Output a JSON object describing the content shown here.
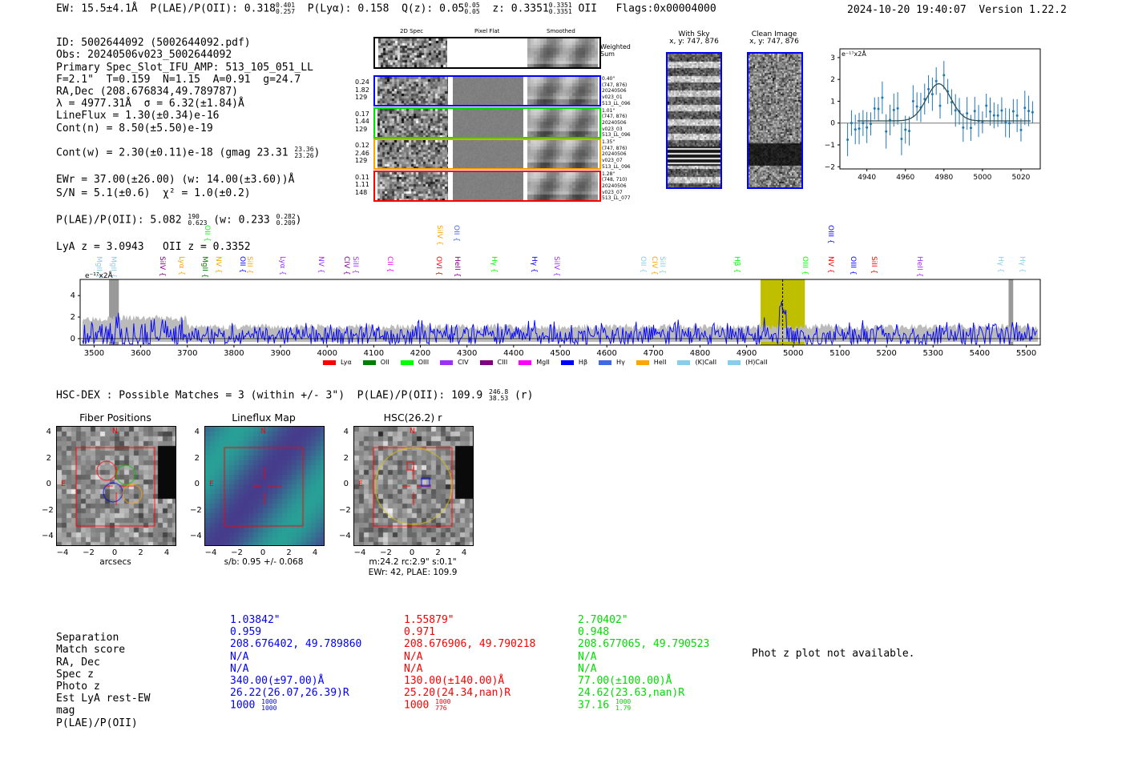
{
  "header": {
    "ew": "EW: 15.5±4.1Å",
    "plae_label": "P(LAE)/P(OII): 0.318",
    "plae_hi": "0.401",
    "plae_lo": "0.257",
    "plya": "P(Lyα): 0.158",
    "qz": "Q(z): 0.05",
    "qz_hi": "0.05",
    "qz_lo": "0.05",
    "z": "z: 0.3351",
    "z_hi": "0.3351",
    "z_lo": "0.3351",
    "z_line": "OII",
    "flags": "Flags:0x00004000",
    "timestamp": "2024-10-20 19:40:07",
    "version": "Version 1.22.2"
  },
  "info": {
    "lines": [
      "ID: 5002644092 (5002644092.pdf)",
      "Obs: 20240506v023_5002644092",
      "Primary Spec_Slot_IFU_AMP: 513_105_051_LL",
      "F=2.1\"  T=0.159  N=1.15  A=0.91  g=24.7",
      "RA,Dec (208.676834,49.789787)",
      "λ = 4977.31Å  σ = 6.32(±1.84)Å",
      "LineFlux = 1.30(±0.34)e-16",
      "Cont(n) = 8.50(±5.50)e-19"
    ],
    "contw": "Cont(w) = 2.30(±0.11)e-18 (gmag 23.31",
    "contw_hi": "23.36",
    "contw_lo": "23.26",
    "contw_end": ")",
    "ewr": "EWr = 37.00(±26.00) (w: 14.00(±3.60))Å",
    "sn": "S/N = 5.1(±0.6)  χ² = 1.0(±0.2)",
    "plae": "P(LAE)/P(OII): 5.082",
    "plae_hi": "190",
    "plae_lo": "0.623",
    "plae_w": "(w: 0.233",
    "plae_w_hi": "0.282",
    "plae_w_lo": "0.209",
    "plae_end": ")",
    "z": "LyA z = 3.0943   OII z = 0.3352"
  },
  "fibers": {
    "col_titles": [
      "2D Spec",
      "Pixel Flat",
      "Smoothed"
    ],
    "sum_label": "Weighted Sum",
    "rows": [
      {
        "color": "#0000ff",
        "left": [
          "0.24",
          "1.82",
          "129"
        ],
        "right": [
          "0.40\"",
          "(747, 876)",
          "20240506",
          "v023_01",
          "513_LL_096"
        ]
      },
      {
        "color": "#00e000",
        "left": [
          "0.17",
          "1.44",
          "129"
        ],
        "right": [
          "1.01\"",
          "(747, 876)",
          "20240506",
          "v023_03",
          "513_LL_096"
        ]
      },
      {
        "color": "#ffa000",
        "left": [
          "0.12",
          "2.46",
          "129"
        ],
        "right": [
          "1.35\"",
          "(747, 876)",
          "20240506",
          "v023_07",
          "513_LL_096"
        ]
      },
      {
        "color": "#ff0000",
        "left": [
          "0.11",
          "1.11",
          "148"
        ],
        "right": [
          "1.28\"",
          "(748, 710)",
          "20240506",
          "v023_07",
          "513_LL_077"
        ]
      }
    ]
  },
  "cutouts": {
    "with_sky": "With Sky",
    "with_sky_xy": "x, y: 747, 876",
    "clean": "Clean Image",
    "clean_xy": "x, y: 747, 876"
  },
  "chart_data": [
    {
      "type": "scatter",
      "title": "",
      "ylabel": "e⁻¹⁷x2Å",
      "xlim": [
        4926,
        5030
      ],
      "ylim": [
        -2.1,
        3.4
      ],
      "xticks": [
        4940,
        4960,
        4980,
        5000,
        5020
      ],
      "yticks": [
        -2,
        -1,
        0,
        1,
        2,
        3
      ],
      "fit": {
        "center": 4977.31,
        "sigma": 6.32,
        "amp": 1.7,
        "cont": 0.1
      }
    },
    {
      "type": "line",
      "ylabel": "e⁻¹⁷x2Å",
      "xlim": [
        3470,
        5530
      ],
      "ylim": [
        -0.6,
        5.5
      ],
      "xticks": [
        3500,
        3600,
        3700,
        3800,
        3900,
        4000,
        4100,
        4200,
        4300,
        4400,
        4500,
        4600,
        4700,
        4800,
        4900,
        5000,
        5100,
        5200,
        5300,
        5400,
        5500
      ],
      "yticks": [
        0,
        2,
        4
      ],
      "highlight": [
        4930,
        5025
      ],
      "line_center": 4977.3,
      "legend": [
        {
          "name": "Lyα",
          "color": "#ff0000"
        },
        {
          "name": "OII",
          "color": "#008000"
        },
        {
          "name": "OIII",
          "color": "#00ff00"
        },
        {
          "name": "CIV",
          "color": "#9b30ff"
        },
        {
          "name": "CIII",
          "color": "#800080"
        },
        {
          "name": "MgII",
          "color": "#ff00ff"
        },
        {
          "name": "Hβ",
          "color": "#0000ff"
        },
        {
          "name": "Hγ",
          "color": "#4169e1"
        },
        {
          "name": "HeII",
          "color": "#ffa500"
        },
        {
          "name": "(K)CaII",
          "color": "#87ceeb"
        },
        {
          "name": "(H)CaII",
          "color": "#87ceeb"
        }
      ],
      "line_labels": [
        {
          "name": "MgII",
          "w": 3510,
          "color": "#87ceeb",
          "row": 1
        },
        {
          "name": "MgII",
          "w": 3541,
          "color": "#87ceeb",
          "row": 1
        },
        {
          "name": "SiIV",
          "w": 3646,
          "color": "#800080",
          "row": 1
        },
        {
          "name": "Lyα",
          "w": 3687,
          "color": "#ffa500",
          "row": 1
        },
        {
          "name": "MgII",
          "w": 3736,
          "color": "#008000",
          "row": 1
        },
        {
          "name": "NV",
          "w": 3765,
          "color": "#ffa500",
          "row": 1
        },
        {
          "name": "OII",
          "w": 3818,
          "color": "#0000ff",
          "row": 1
        },
        {
          "name": "SiII",
          "w": 3833,
          "color": "#ffa500",
          "row": 1
        },
        {
          "name": "Lyα",
          "w": 3903,
          "color": "#9b30ff",
          "row": 1
        },
        {
          "name": "NV",
          "w": 3986,
          "color": "#9b30ff",
          "row": 1
        },
        {
          "name": "CIV",
          "w": 4041,
          "color": "#800080",
          "row": 1
        },
        {
          "name": "SiII",
          "w": 4059,
          "color": "#9b30ff",
          "row": 1
        },
        {
          "name": "CII",
          "w": 4134,
          "color": "#ff00ff",
          "row": 1
        },
        {
          "name": "OVI",
          "w": 4238,
          "color": "#ff0000",
          "row": 1
        },
        {
          "name": "HeII",
          "w": 4279,
          "color": "#800080",
          "row": 1
        },
        {
          "name": "Hγ",
          "w": 4357,
          "color": "#00ff00",
          "row": 1
        },
        {
          "name": "Hγ",
          "w": 4444,
          "color": "#0000ff",
          "row": 1
        },
        {
          "name": "SiIV",
          "w": 4491,
          "color": "#9b30ff",
          "row": 1
        },
        {
          "name": "OII",
          "w": 4677,
          "color": "#87ceeb",
          "row": 1
        },
        {
          "name": "CIV",
          "w": 4702,
          "color": "#ffa500",
          "row": 1
        },
        {
          "name": "SiII",
          "w": 4718,
          "color": "#87ceeb",
          "row": 1
        },
        {
          "name": "Hβ",
          "w": 4879,
          "color": "#00ff00",
          "row": 1
        },
        {
          "name": "OIII",
          "w": 5025,
          "color": "#00ff00",
          "row": 1
        },
        {
          "name": "NV",
          "w": 5080,
          "color": "#ff0000",
          "row": 1
        },
        {
          "name": "OIII",
          "w": 5127,
          "color": "#0000ff",
          "row": 1
        },
        {
          "name": "SiII",
          "w": 5173,
          "color": "#ff0000",
          "row": 1
        },
        {
          "name": "HeII",
          "w": 5270,
          "color": "#9b30ff",
          "row": 1
        },
        {
          "name": "Hγ",
          "w": 5444,
          "color": "#87ceeb",
          "row": 1
        },
        {
          "name": "Hγ",
          "w": 5491,
          "color": "#87ceeb",
          "row": 1
        },
        {
          "name": "OII",
          "w": 3741,
          "color": "#00ff00",
          "row": 0
        },
        {
          "name": "SiIV",
          "w": 4241,
          "color": "#ffa500",
          "row": 0
        },
        {
          "name": "OII",
          "w": 4277,
          "color": "#4169e1",
          "row": 0
        },
        {
          "name": "OIII",
          "w": 5080,
          "color": "#0000ff",
          "row": 0
        }
      ]
    }
  ],
  "hsc": {
    "title": "HSC-DEX : Possible Matches = 3 (within +/- 3\")  P(LAE)/P(OII): 109.9",
    "hi": "246.8",
    "lo": "38.53",
    "band": "(r)"
  },
  "panels": [
    {
      "title": "Fiber Positions",
      "xlabel": "arcsecs",
      "sub": ""
    },
    {
      "title": "Lineflux Map",
      "xlabel": "s/b: 0.95 +/- 0.068",
      "sub": ""
    },
    {
      "title": "HSC(26.2) r",
      "xlabel": "m:24.2 rc:2.9\"  s:0.1\"",
      "sub": "EWr: 42, PLAE: 109.9"
    }
  ],
  "panel_ticks": [
    "4",
    "2",
    "0",
    "−2",
    "−4"
  ],
  "panel_xticks": [
    "−4",
    "−2",
    "0",
    "2",
    "4"
  ],
  "compass": {
    "n": "N",
    "e": "E"
  },
  "matches": {
    "labels": [
      "Separation",
      "Match score",
      "RA, Dec",
      "Spec z",
      "Photo z",
      "Est LyA rest-EW",
      "mag",
      "P(LAE)/P(OII)"
    ],
    "cols": [
      {
        "color": "#0000ff",
        "vals": [
          "1.03842\"",
          "0.959",
          "208.676402, 49.789860",
          "N/A",
          "N/A",
          "340.00(±97.00)Å",
          "26.22(26.07,26.39)R"
        ],
        "p": "1000",
        "p_hi": "1000",
        "p_lo": "1000"
      },
      {
        "color": "#ff0000",
        "vals": [
          "1.55879\"",
          "0.971",
          "208.676906, 49.790218",
          "N/A",
          "N/A",
          "130.00(±140.00)Å",
          "25.20(24.34,nan)R"
        ],
        "p": "1000",
        "p_hi": "1000",
        "p_lo": "776"
      },
      {
        "color": "#00dd00",
        "vals": [
          "2.70402\"",
          "0.948",
          "208.677065, 49.790523",
          "N/A",
          "N/A",
          "77.00(±100.00)Å",
          "24.62(23.63,nan)R"
        ],
        "p": "37.16",
        "p_hi": "1000",
        "p_lo": "1.79"
      }
    ],
    "photz": "Phot z plot not available."
  }
}
